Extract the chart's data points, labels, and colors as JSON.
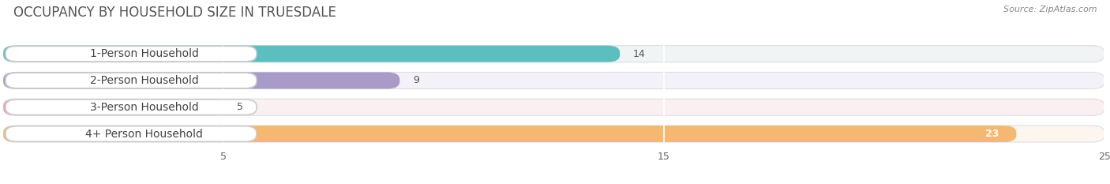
{
  "title": "OCCUPANCY BY HOUSEHOLD SIZE IN TRUESDALE",
  "source": "Source: ZipAtlas.com",
  "categories": [
    "1-Person Household",
    "2-Person Household",
    "3-Person Household",
    "4+ Person Household"
  ],
  "values": [
    14,
    9,
    5,
    23
  ],
  "bar_colors": [
    "#5BBFBF",
    "#A89BC9",
    "#F4A0B0",
    "#F5B870"
  ],
  "label_border_colors": [
    "#5BBFBF",
    "#A89BC9",
    "#F4A0B0",
    "#F5B870"
  ],
  "value_label_colors": [
    "#555555",
    "#555555",
    "#555555",
    "#ffffff"
  ],
  "xlim": [
    0,
    25
  ],
  "xticks": [
    5,
    15,
    25
  ],
  "bg_colors": [
    "#f0f4f4",
    "#f4f2f8",
    "#faf0f2",
    "#fdf6ee"
  ],
  "title_fontsize": 12,
  "label_fontsize": 10,
  "value_fontsize": 9,
  "source_fontsize": 8
}
